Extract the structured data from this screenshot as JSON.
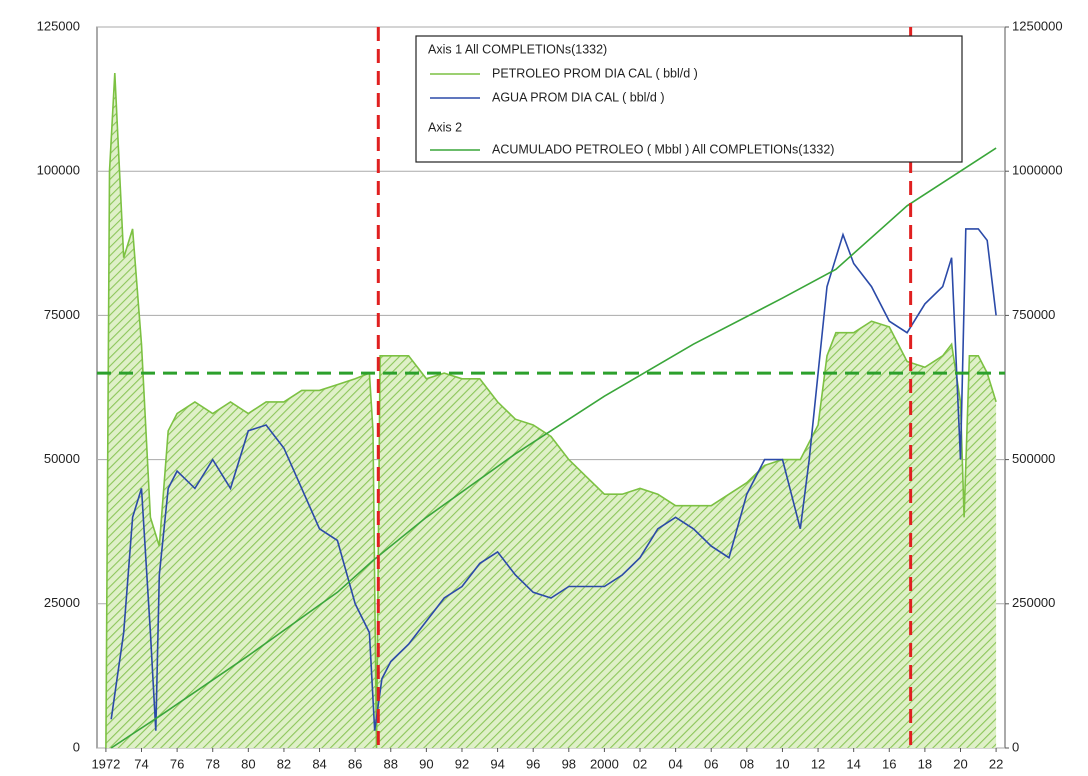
{
  "chart_data": {
    "type": "line",
    "legend_groups": [
      "Axis 1  All COMPLETIONs(1332)",
      "Axis 2"
    ],
    "series": [
      {
        "name": "PETROLEO PROM DIA CAL ( bbl/d )",
        "color": "#7cc142",
        "fill": "hatched",
        "axis": "y",
        "x": [
          1972.0,
          1972.2,
          1972.5,
          1973,
          1973.5,
          1974,
          1974.5,
          1975,
          1975.5,
          1976,
          1977,
          1978,
          1979,
          1980,
          1981,
          1982,
          1983,
          1984,
          1985,
          1986,
          1986.8,
          1987.0,
          1987.2,
          1987.4,
          1988,
          1989,
          1990,
          1991,
          1992,
          1993,
          1994,
          1995,
          1996,
          1997,
          1998,
          1999,
          2000,
          2001,
          2002,
          2003,
          2004,
          2005,
          2006,
          2007,
          2008,
          2009,
          2010,
          2011,
          2012,
          2012.5,
          2013,
          2014,
          2015,
          2016,
          2017,
          2018,
          2019,
          2019.5,
          2020,
          2020.2,
          2020.5,
          2021,
          2021.5,
          2022
        ],
        "values": [
          0,
          100000,
          117000,
          85000,
          90000,
          70000,
          40000,
          35000,
          55000,
          58000,
          60000,
          58000,
          60000,
          58000,
          60000,
          60000,
          62000,
          62000,
          63000,
          64000,
          65000,
          55000,
          0,
          68000,
          68000,
          68000,
          64000,
          65000,
          64000,
          64000,
          60000,
          57000,
          56000,
          54000,
          50000,
          47000,
          44000,
          44000,
          45000,
          44000,
          42000,
          42000,
          42000,
          44000,
          46000,
          49000,
          50000,
          50000,
          56000,
          68000,
          72000,
          72000,
          74000,
          73000,
          67000,
          66000,
          68000,
          70000,
          60000,
          40000,
          68000,
          68000,
          65000,
          60000
        ]
      },
      {
        "name": "AGUA  PROM DIA CAL ( bbl/d )",
        "color": "#2b4aa8",
        "axis": "y",
        "x": [
          1972.3,
          1973,
          1973.5,
          1974,
          1974.5,
          1974.8,
          1975,
          1975.5,
          1976,
          1977,
          1978,
          1979,
          1980,
          1981,
          1982,
          1983,
          1984,
          1985,
          1986,
          1986.8,
          1987.1,
          1987.5,
          1988,
          1989,
          1990,
          1991,
          1992,
          1993,
          1994,
          1995,
          1996,
          1997,
          1998,
          1999,
          2000,
          2001,
          2002,
          2003,
          2004,
          2005,
          2006,
          2007,
          2008,
          2009,
          2010,
          2011,
          2011.5,
          2012,
          2012.5,
          2013,
          2013.4,
          2014,
          2015,
          2016,
          2017,
          2018,
          2019,
          2019.5,
          2020,
          2020.3,
          2021,
          2021.5,
          2022
        ],
        "values": [
          5000,
          20000,
          40000,
          45000,
          20000,
          3000,
          30000,
          45000,
          48000,
          45000,
          50000,
          45000,
          55000,
          56000,
          52000,
          45000,
          38000,
          36000,
          25000,
          20000,
          3000,
          12000,
          15000,
          18000,
          22000,
          26000,
          28000,
          32000,
          34000,
          30000,
          27000,
          26000,
          28000,
          28000,
          28000,
          30000,
          33000,
          38000,
          40000,
          38000,
          35000,
          33000,
          44000,
          50000,
          50000,
          38000,
          50000,
          65000,
          80000,
          85000,
          89000,
          84000,
          80000,
          74000,
          72000,
          77000,
          80000,
          85000,
          50000,
          90000,
          90000,
          88000,
          75000
        ]
      },
      {
        "name": "ACUMULADO PETROLEO ( Mbbl ) All COMPLETIONs(1332)",
        "color": "#3aa63a",
        "axis": "y2",
        "x": [
          1972.3,
          1975,
          1980,
          1985,
          1987,
          1990,
          1995,
          2000,
          2005,
          2010,
          2013,
          2017,
          2022
        ],
        "values": [
          0,
          55000,
          160000,
          270000,
          325000,
          400000,
          510000,
          610000,
          700000,
          780000,
          830000,
          940000,
          1040000
        ]
      }
    ],
    "reference_lines": {
      "y": [
        65000
      ],
      "y_color": "#2ca02c",
      "x": [
        1987.3,
        2017.2
      ],
      "x_color": "#e02020"
    },
    "xlim": [
      1971.5,
      2022.5
    ],
    "xticks": [
      1972,
      {
        "value": 1974,
        "label": "74"
      },
      {
        "value": 1976,
        "label": "76"
      },
      {
        "value": 1978,
        "label": "78"
      },
      {
        "value": 1980,
        "label": "80"
      },
      {
        "value": 1982,
        "label": "82"
      },
      {
        "value": 1984,
        "label": "84"
      },
      {
        "value": 1986,
        "label": "86"
      },
      {
        "value": 1988,
        "label": "88"
      },
      {
        "value": 1990,
        "label": "90"
      },
      {
        "value": 1992,
        "label": "92"
      },
      {
        "value": 1994,
        "label": "94"
      },
      {
        "value": 1996,
        "label": "96"
      },
      {
        "value": 1998,
        "label": "98"
      },
      2000,
      {
        "value": 2002,
        "label": "02"
      },
      {
        "value": 2004,
        "label": "04"
      },
      {
        "value": 2006,
        "label": "06"
      },
      {
        "value": 2008,
        "label": "08"
      },
      {
        "value": 2010,
        "label": "10"
      },
      {
        "value": 2012,
        "label": "12"
      },
      {
        "value": 2014,
        "label": "14"
      },
      {
        "value": 2016,
        "label": "16"
      },
      {
        "value": 2018,
        "label": "18"
      },
      {
        "value": 2020,
        "label": "20"
      },
      {
        "value": 2022,
        "label": "22"
      }
    ],
    "ylim": [
      0,
      125000
    ],
    "yticks": [
      0,
      25000,
      50000,
      75000,
      100000,
      125000
    ],
    "y2lim": [
      0,
      1250000
    ],
    "y2ticks": [
      0,
      250000,
      500000,
      750000,
      1000000,
      1250000
    ],
    "grid": true
  }
}
